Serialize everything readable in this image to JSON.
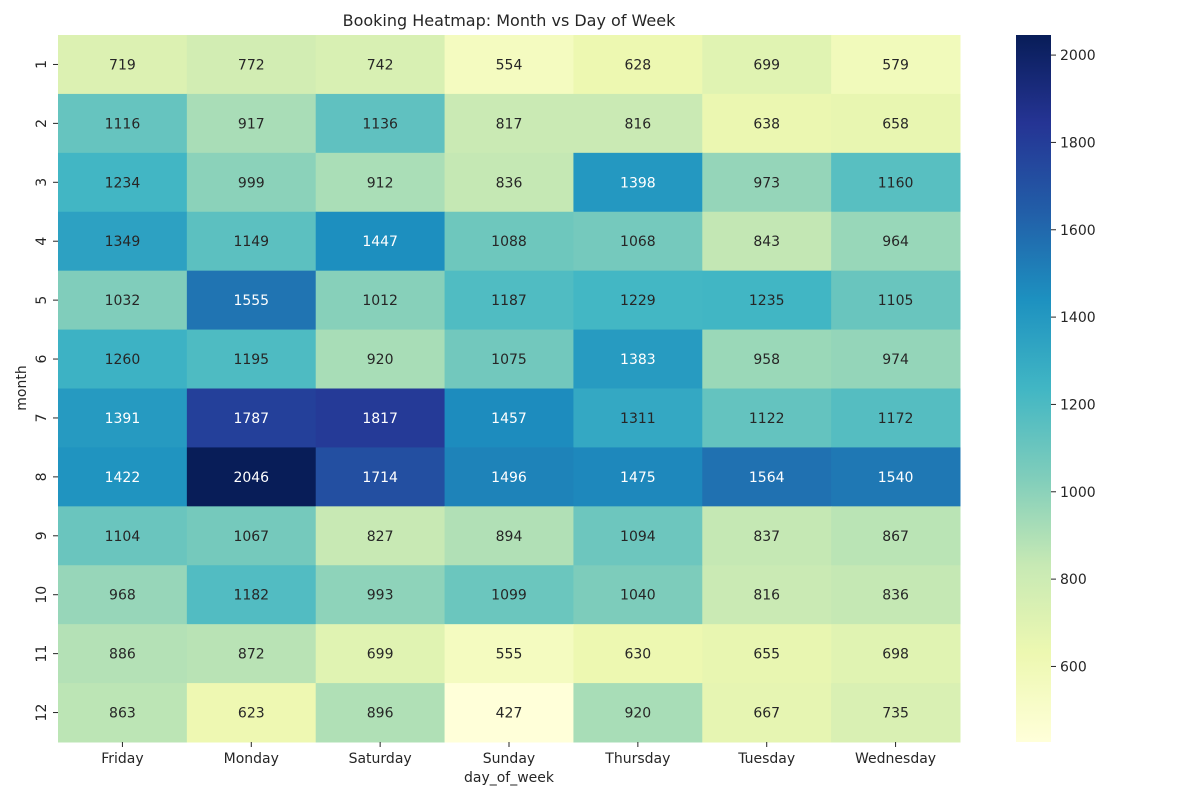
{
  "chart_data": {
    "type": "heatmap",
    "title": "Booking Heatmap: Month vs Day of Week",
    "xlabel": "day_of_week",
    "ylabel": "month",
    "x_categories": [
      "Friday",
      "Monday",
      "Saturday",
      "Sunday",
      "Thursday",
      "Tuesday",
      "Wednesday"
    ],
    "y_categories": [
      "1",
      "2",
      "3",
      "4",
      "5",
      "6",
      "7",
      "8",
      "9",
      "10",
      "11",
      "12"
    ],
    "values": [
      [
        719,
        772,
        742,
        554,
        628,
        699,
        579
      ],
      [
        1116,
        917,
        1136,
        817,
        816,
        638,
        658
      ],
      [
        1234,
        999,
        912,
        836,
        1398,
        973,
        1160
      ],
      [
        1349,
        1149,
        1447,
        1088,
        1068,
        843,
        964
      ],
      [
        1032,
        1555,
        1012,
        1187,
        1229,
        1235,
        1105
      ],
      [
        1260,
        1195,
        920,
        1075,
        1383,
        958,
        974
      ],
      [
        1391,
        1787,
        1817,
        1457,
        1311,
        1122,
        1172
      ],
      [
        1422,
        2046,
        1714,
        1496,
        1475,
        1564,
        1540
      ],
      [
        1104,
        1067,
        827,
        894,
        1094,
        837,
        867
      ],
      [
        968,
        1182,
        993,
        1099,
        1040,
        816,
        836
      ],
      [
        886,
        872,
        699,
        555,
        630,
        655,
        698
      ],
      [
        863,
        623,
        896,
        427,
        920,
        667,
        735
      ]
    ],
    "colormap": "YlGnBu",
    "vmin": 427,
    "vmax": 2046,
    "colorbar_ticks": [
      600,
      800,
      1000,
      1200,
      1400,
      1600,
      1800,
      2000
    ],
    "colors": {
      "stops": [
        "#ffffd9",
        "#edf8b1",
        "#c7e9b4",
        "#7fcdbb",
        "#41b6c4",
        "#1d91c0",
        "#225ea8",
        "#253494",
        "#081d58"
      ],
      "text_light": "#ffffff",
      "text_dark": "#262626"
    }
  }
}
